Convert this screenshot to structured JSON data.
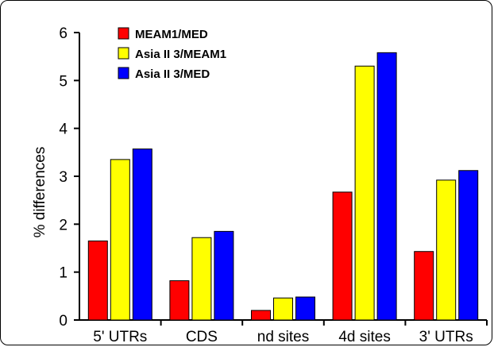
{
  "chart_data": {
    "type": "bar",
    "ylabel": "% differences",
    "xlabel": "",
    "ylim": [
      0,
      6
    ],
    "yticks": [
      0,
      1,
      2,
      3,
      4,
      5,
      6
    ],
    "categories": [
      "5' UTRs",
      "CDS",
      "nd sites",
      "4d sites",
      "3' UTRs"
    ],
    "series": [
      {
        "name": "MEAM1/MED",
        "color": "#ff0000",
        "values": [
          1.65,
          0.82,
          0.2,
          2.67,
          1.43
        ]
      },
      {
        "name": "Asia II 3/MEAM1",
        "color": "#ffff00",
        "values": [
          3.35,
          1.72,
          0.46,
          5.3,
          2.92
        ]
      },
      {
        "name": "Asia II 3/MED",
        "color": "#0000ff",
        "values": [
          3.57,
          1.85,
          0.48,
          5.58,
          3.12
        ]
      }
    ],
    "legend_position": "top-left",
    "grid": false
  }
}
